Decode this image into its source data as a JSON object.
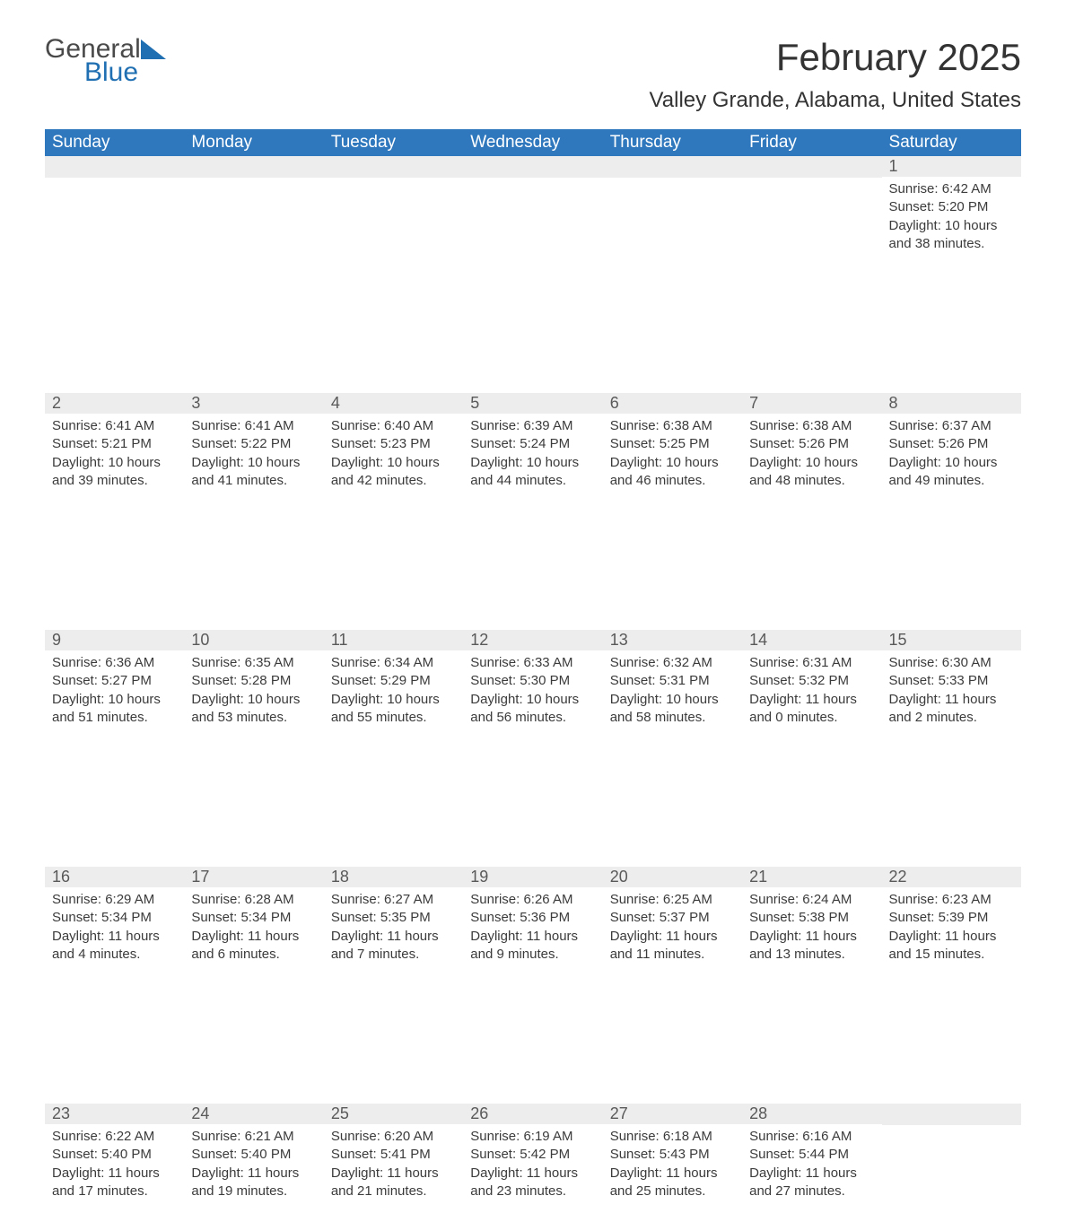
{
  "logo": {
    "text1": "General",
    "text2": "Blue"
  },
  "title": "February 2025",
  "location": "Valley Grande, Alabama, United States",
  "colors": {
    "header_bg": "#2f78bd",
    "header_text": "#ffffff",
    "daynum_bg": "#ededed",
    "daynum_text": "#595959",
    "body_text": "#3b3b3b",
    "logo_gray": "#4a4a4a",
    "logo_blue": "#1f6fb2"
  },
  "weekdays": [
    "Sunday",
    "Monday",
    "Tuesday",
    "Wednesday",
    "Thursday",
    "Friday",
    "Saturday"
  ],
  "weeks": [
    [
      null,
      null,
      null,
      null,
      null,
      null,
      {
        "n": "1",
        "sunrise": "Sunrise: 6:42 AM",
        "sunset": "Sunset: 5:20 PM",
        "daylight": "Daylight: 10 hours and 38 minutes."
      }
    ],
    [
      {
        "n": "2",
        "sunrise": "Sunrise: 6:41 AM",
        "sunset": "Sunset: 5:21 PM",
        "daylight": "Daylight: 10 hours and 39 minutes."
      },
      {
        "n": "3",
        "sunrise": "Sunrise: 6:41 AM",
        "sunset": "Sunset: 5:22 PM",
        "daylight": "Daylight: 10 hours and 41 minutes."
      },
      {
        "n": "4",
        "sunrise": "Sunrise: 6:40 AM",
        "sunset": "Sunset: 5:23 PM",
        "daylight": "Daylight: 10 hours and 42 minutes."
      },
      {
        "n": "5",
        "sunrise": "Sunrise: 6:39 AM",
        "sunset": "Sunset: 5:24 PM",
        "daylight": "Daylight: 10 hours and 44 minutes."
      },
      {
        "n": "6",
        "sunrise": "Sunrise: 6:38 AM",
        "sunset": "Sunset: 5:25 PM",
        "daylight": "Daylight: 10 hours and 46 minutes."
      },
      {
        "n": "7",
        "sunrise": "Sunrise: 6:38 AM",
        "sunset": "Sunset: 5:26 PM",
        "daylight": "Daylight: 10 hours and 48 minutes."
      },
      {
        "n": "8",
        "sunrise": "Sunrise: 6:37 AM",
        "sunset": "Sunset: 5:26 PM",
        "daylight": "Daylight: 10 hours and 49 minutes."
      }
    ],
    [
      {
        "n": "9",
        "sunrise": "Sunrise: 6:36 AM",
        "sunset": "Sunset: 5:27 PM",
        "daylight": "Daylight: 10 hours and 51 minutes."
      },
      {
        "n": "10",
        "sunrise": "Sunrise: 6:35 AM",
        "sunset": "Sunset: 5:28 PM",
        "daylight": "Daylight: 10 hours and 53 minutes."
      },
      {
        "n": "11",
        "sunrise": "Sunrise: 6:34 AM",
        "sunset": "Sunset: 5:29 PM",
        "daylight": "Daylight: 10 hours and 55 minutes."
      },
      {
        "n": "12",
        "sunrise": "Sunrise: 6:33 AM",
        "sunset": "Sunset: 5:30 PM",
        "daylight": "Daylight: 10 hours and 56 minutes."
      },
      {
        "n": "13",
        "sunrise": "Sunrise: 6:32 AM",
        "sunset": "Sunset: 5:31 PM",
        "daylight": "Daylight: 10 hours and 58 minutes."
      },
      {
        "n": "14",
        "sunrise": "Sunrise: 6:31 AM",
        "sunset": "Sunset: 5:32 PM",
        "daylight": "Daylight: 11 hours and 0 minutes."
      },
      {
        "n": "15",
        "sunrise": "Sunrise: 6:30 AM",
        "sunset": "Sunset: 5:33 PM",
        "daylight": "Daylight: 11 hours and 2 minutes."
      }
    ],
    [
      {
        "n": "16",
        "sunrise": "Sunrise: 6:29 AM",
        "sunset": "Sunset: 5:34 PM",
        "daylight": "Daylight: 11 hours and 4 minutes."
      },
      {
        "n": "17",
        "sunrise": "Sunrise: 6:28 AM",
        "sunset": "Sunset: 5:34 PM",
        "daylight": "Daylight: 11 hours and 6 minutes."
      },
      {
        "n": "18",
        "sunrise": "Sunrise: 6:27 AM",
        "sunset": "Sunset: 5:35 PM",
        "daylight": "Daylight: 11 hours and 7 minutes."
      },
      {
        "n": "19",
        "sunrise": "Sunrise: 6:26 AM",
        "sunset": "Sunset: 5:36 PM",
        "daylight": "Daylight: 11 hours and 9 minutes."
      },
      {
        "n": "20",
        "sunrise": "Sunrise: 6:25 AM",
        "sunset": "Sunset: 5:37 PM",
        "daylight": "Daylight: 11 hours and 11 minutes."
      },
      {
        "n": "21",
        "sunrise": "Sunrise: 6:24 AM",
        "sunset": "Sunset: 5:38 PM",
        "daylight": "Daylight: 11 hours and 13 minutes."
      },
      {
        "n": "22",
        "sunrise": "Sunrise: 6:23 AM",
        "sunset": "Sunset: 5:39 PM",
        "daylight": "Daylight: 11 hours and 15 minutes."
      }
    ],
    [
      {
        "n": "23",
        "sunrise": "Sunrise: 6:22 AM",
        "sunset": "Sunset: 5:40 PM",
        "daylight": "Daylight: 11 hours and 17 minutes."
      },
      {
        "n": "24",
        "sunrise": "Sunrise: 6:21 AM",
        "sunset": "Sunset: 5:40 PM",
        "daylight": "Daylight: 11 hours and 19 minutes."
      },
      {
        "n": "25",
        "sunrise": "Sunrise: 6:20 AM",
        "sunset": "Sunset: 5:41 PM",
        "daylight": "Daylight: 11 hours and 21 minutes."
      },
      {
        "n": "26",
        "sunrise": "Sunrise: 6:19 AM",
        "sunset": "Sunset: 5:42 PM",
        "daylight": "Daylight: 11 hours and 23 minutes."
      },
      {
        "n": "27",
        "sunrise": "Sunrise: 6:18 AM",
        "sunset": "Sunset: 5:43 PM",
        "daylight": "Daylight: 11 hours and 25 minutes."
      },
      {
        "n": "28",
        "sunrise": "Sunrise: 6:16 AM",
        "sunset": "Sunset: 5:44 PM",
        "daylight": "Daylight: 11 hours and 27 minutes."
      },
      null
    ]
  ]
}
